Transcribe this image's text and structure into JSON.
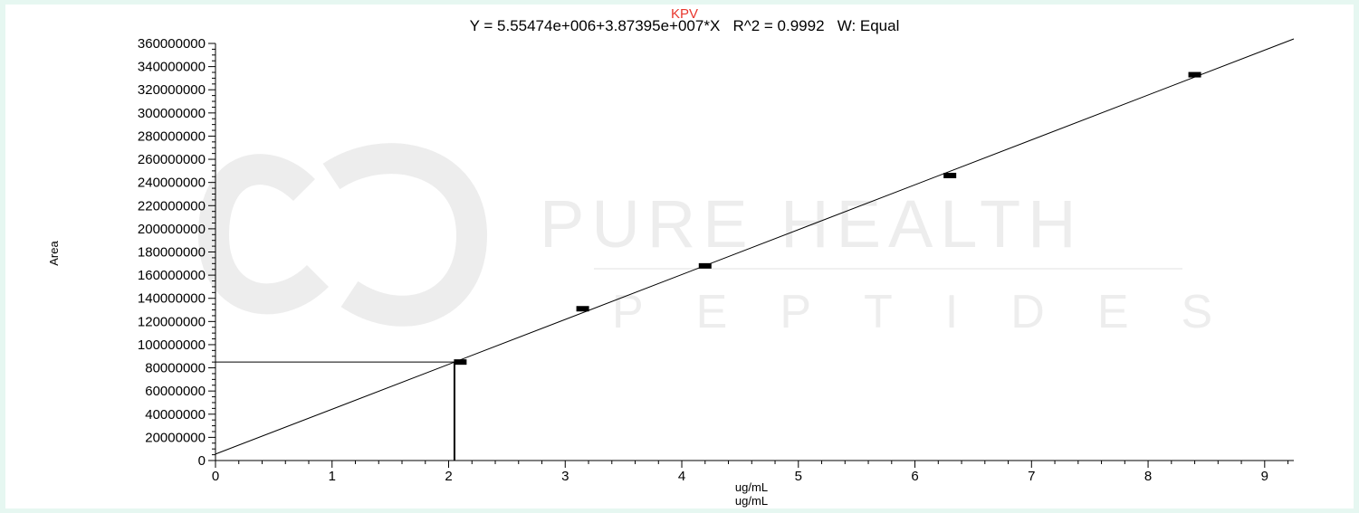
{
  "watermark": {
    "line1": "PURE HEALTH",
    "line2": "PEPTIDES"
  },
  "chart_data": {
    "type": "scatter",
    "title": "KPV",
    "subtitle": "Y = 5.55474e+006+3.87395e+007*X   R^2 = 0.9992   W: Equal",
    "xlabel": "ug/mL",
    "xlabel_repeat": "ug/mL",
    "ylabel": "Area",
    "xlim": [
      0,
      9.25
    ],
    "ylim": [
      0,
      360000000
    ],
    "x_ticks": [
      "0",
      "1",
      "2",
      "3",
      "4",
      "5",
      "6",
      "7",
      "8",
      "9"
    ],
    "x_tick_values": [
      0,
      1,
      2,
      3,
      4,
      5,
      6,
      7,
      8,
      9
    ],
    "y_ticks": [
      "0",
      "20000000",
      "40000000",
      "60000000",
      "80000000",
      "100000000",
      "120000000",
      "140000000",
      "160000000",
      "180000000",
      "200000000",
      "220000000",
      "240000000",
      "260000000",
      "280000000",
      "300000000",
      "320000000",
      "340000000",
      "360000000"
    ],
    "y_tick_values": [
      0,
      20000000,
      40000000,
      60000000,
      80000000,
      100000000,
      120000000,
      140000000,
      160000000,
      180000000,
      200000000,
      220000000,
      240000000,
      260000000,
      280000000,
      300000000,
      320000000,
      340000000,
      360000000
    ],
    "fit": {
      "intercept": 5554740,
      "slope": 38739500,
      "x_range": [
        0,
        9.25
      ]
    },
    "series": [
      {
        "x": [
          2.1,
          3.15,
          4.2,
          6.3,
          8.4
        ],
        "y": [
          85000000,
          131000000,
          168000000,
          246000000,
          333000000
        ]
      }
    ],
    "marker": {
      "x": 2.05,
      "y": 85000000
    },
    "grid": false,
    "legend": "none",
    "colors": {
      "title": "#e8362d",
      "axis": "#000000",
      "line": "#000000",
      "background": "#ffffff",
      "frame": "#e6f7f1"
    }
  }
}
